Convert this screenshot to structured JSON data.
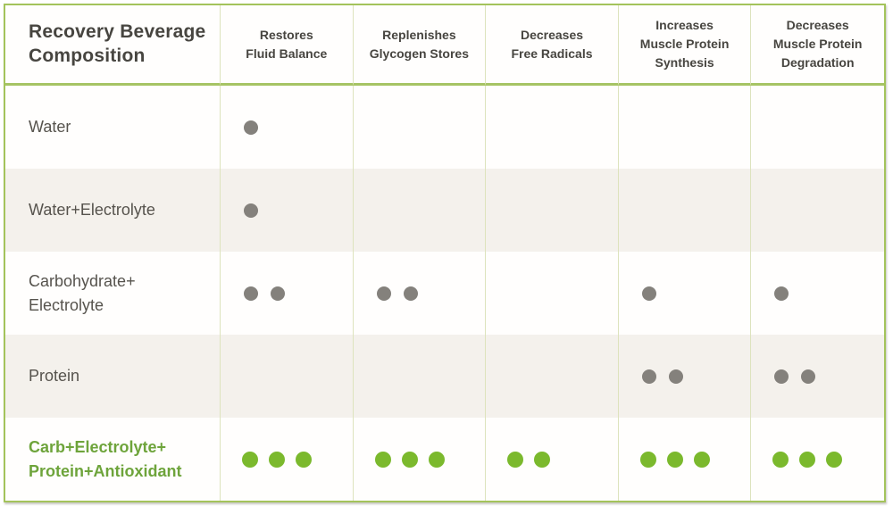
{
  "chart_data": {
    "type": "table",
    "title": "Recovery Beverage Composition",
    "columns": [
      [
        "Restores",
        "Fluid Balance"
      ],
      [
        "Replenishes",
        "Glycogen Stores"
      ],
      [
        "Decreases",
        "Free Radicals"
      ],
      [
        "Increases",
        "Muscle Protein",
        "Synthesis"
      ],
      [
        "Decreases",
        "Muscle Protein",
        "Degradation"
      ]
    ],
    "rows": [
      {
        "label_lines": [
          "Water"
        ],
        "scores": [
          1,
          0,
          0,
          0,
          0
        ],
        "highlight": false
      },
      {
        "label_lines": [
          "Water+Electrolyte"
        ],
        "scores": [
          1,
          0,
          0,
          0,
          0
        ],
        "highlight": false
      },
      {
        "label_lines": [
          "Carbohydrate+",
          "Electrolyte"
        ],
        "scores": [
          2,
          2,
          0,
          1,
          1
        ],
        "highlight": false
      },
      {
        "label_lines": [
          "Protein"
        ],
        "scores": [
          0,
          0,
          0,
          2,
          2
        ],
        "highlight": false
      },
      {
        "label_lines": [
          "Carb+Electrolyte+",
          "Protein+Antioxidant"
        ],
        "scores": [
          3,
          3,
          2,
          3,
          3
        ],
        "highlight": true
      }
    ]
  },
  "colors": {
    "accent_green": "#7bb92d",
    "border_green": "#a3c35b",
    "header_line": "#a6c464",
    "grid_line": "#dde3bd",
    "dot_gray": "#84817c",
    "row_alt_bg": "#f4f1ec",
    "header_text": "#474540",
    "label_text": "#56534d",
    "highlight_text": "#6ea43b"
  }
}
